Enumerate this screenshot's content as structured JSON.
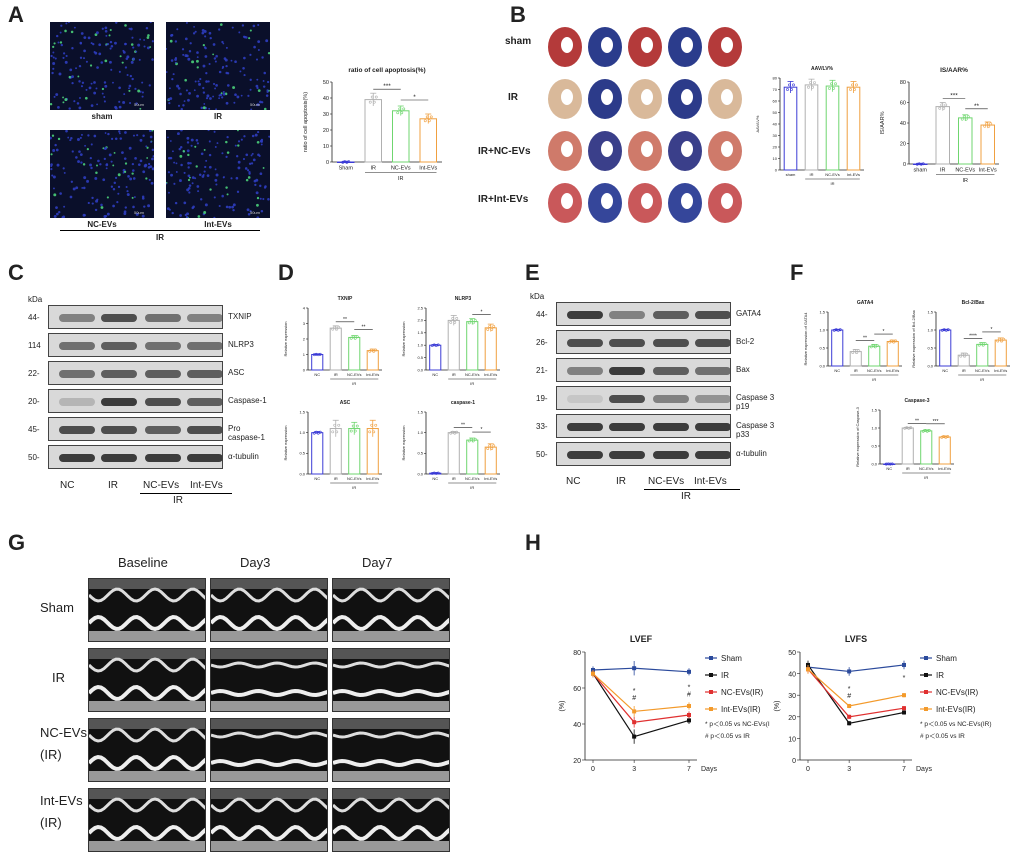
{
  "panels": {
    "A": "A",
    "B": "B",
    "C": "C",
    "D": "D",
    "E": "E",
    "F": "F",
    "G": "G",
    "H": "H"
  },
  "panelA": {
    "images": [
      "sham",
      "IR",
      "NC-EVs",
      "Int-EVs"
    ],
    "group_label": "IR",
    "scale_bar": "50um"
  },
  "panelB": {
    "rows": [
      "sham",
      "IR",
      "IR+NC-EVs",
      "IR+Int-EVs"
    ]
  },
  "panelC": {
    "kda_header": "kDa",
    "rows": [
      {
        "kda": "44-",
        "label": "TXNIP"
      },
      {
        "kda": "114",
        "label": "NLRP3"
      },
      {
        "kda": "22-",
        "label": "ASC"
      },
      {
        "kda": "20-",
        "label": "Caspase-1"
      },
      {
        "kda": "45-",
        "label": "Pro caspase-1"
      },
      {
        "kda": "50-",
        "label": "α-tubulin"
      }
    ],
    "lanes": [
      "NC",
      "IR",
      "NC-EVs",
      "Int-EVs"
    ],
    "group_label": "IR"
  },
  "panelE": {
    "kda_header": "kDa",
    "rows": [
      {
        "kda": "44-",
        "label": "GATA4"
      },
      {
        "kda": "26-",
        "label": "Bcl-2"
      },
      {
        "kda": "21-",
        "label": "Bax"
      },
      {
        "kda": "19-",
        "label": "Caspase 3 p19"
      },
      {
        "kda": "33-",
        "label": "Caspase 3 p33"
      },
      {
        "kda": "50-",
        "label": "α-tubulin"
      }
    ],
    "lanes": [
      "NC",
      "IR",
      "NC-EVs",
      "Int-EVs"
    ],
    "group_label": "IR"
  },
  "panelG": {
    "columns": [
      "Baseline",
      "Day3",
      "Day7"
    ],
    "rows": [
      "Sham",
      "IR",
      "NC-EVs\n(IR)",
      "Int-EVs\n(IR)"
    ]
  },
  "colors": {
    "sham": "#3b3bd6",
    "ir": "#b0b0b0",
    "nc": "#6fd66f",
    "int": "#f0a040",
    "h_sham": "#2b4a9c",
    "h_ir": "#111111",
    "h_nc": "#e03030",
    "h_int": "#f39a2b"
  },
  "chart_data": [
    {
      "id": "A-apoptosis",
      "type": "bar",
      "title": "ratio of cell apoptosis(%)",
      "ylabel": "ratio of cell apoptosis(%)",
      "categories": [
        "Sham",
        "IR",
        "NC-EVs",
        "Int-EVs"
      ],
      "group_label": "IR",
      "values": [
        0,
        39,
        32,
        27
      ],
      "errors": [
        0.5,
        4,
        3,
        3
      ],
      "ylim": [
        0,
        50
      ],
      "yticks": [
        "0",
        "10",
        "20",
        "30",
        "40",
        "50"
      ],
      "sig": [
        {
          "from": 1,
          "to": 2,
          "text": "***"
        },
        {
          "from": 2,
          "to": 3,
          "text": "*"
        }
      ]
    },
    {
      "id": "B-aav",
      "type": "bar",
      "title": "AAV/LV%",
      "ylabel": "AAV/LV%",
      "categories": [
        "sham",
        "IR",
        "NC-EVs",
        "Int-EVs"
      ],
      "group_label": "IR",
      "values": [
        72,
        74,
        73,
        72
      ],
      "errors": [
        5,
        5,
        5,
        5
      ],
      "ylim": [
        0,
        80
      ],
      "yticks": [
        "0",
        "10",
        "20",
        "30",
        "40",
        "50",
        "60",
        "70",
        "80"
      ],
      "sig": []
    },
    {
      "id": "B-isaar",
      "type": "bar",
      "title": "IS/AAR%",
      "ylabel": "IS/AAR%",
      "categories": [
        "sham",
        "IR",
        "NC-EVs",
        "Int-EVs"
      ],
      "group_label": "IR",
      "values": [
        0,
        56,
        45,
        38
      ],
      "errors": [
        0.5,
        4,
        3,
        3
      ],
      "ylim": [
        0,
        80
      ],
      "yticks": [
        "0",
        "20",
        "40",
        "60",
        "80"
      ],
      "sig": [
        {
          "from": 1,
          "to": 2,
          "text": "***"
        },
        {
          "from": 2,
          "to": 3,
          "text": "**"
        }
      ]
    },
    {
      "id": "D-txnip",
      "type": "bar",
      "title": "TXNIP",
      "ylabel": "Relative expression",
      "categories": [
        "NC",
        "IR",
        "NC-EVs",
        "Int-EVs"
      ],
      "group_label": "IR",
      "values": [
        1.0,
        2.7,
        2.1,
        1.25
      ],
      "errors": [
        0.03,
        0.15,
        0.12,
        0.1
      ],
      "ylim": [
        0,
        4
      ],
      "yticks": [
        "0",
        "1",
        "2",
        "3",
        "4"
      ],
      "sig": [
        {
          "from": 1,
          "to": 2,
          "text": "**"
        },
        {
          "from": 2,
          "to": 3,
          "text": "**"
        }
      ]
    },
    {
      "id": "D-nlrp3",
      "type": "bar",
      "title": "NLRP3",
      "ylabel": "Relative expression",
      "categories": [
        "NC",
        "IR",
        "NC-EVs",
        "Int-EVs"
      ],
      "group_label": "IR",
      "values": [
        1.0,
        2.0,
        1.95,
        1.7
      ],
      "errors": [
        0.03,
        0.2,
        0.12,
        0.15
      ],
      "ylim": [
        0,
        2.5
      ],
      "yticks": [
        "0.0",
        "0.5",
        "1.0",
        "1.5",
        "2.0",
        "2.5"
      ],
      "sig": [
        {
          "from": 2,
          "to": 3,
          "text": "*"
        }
      ]
    },
    {
      "id": "D-asc",
      "type": "bar",
      "title": "ASC",
      "ylabel": "Relative expression",
      "categories": [
        "NC",
        "IR",
        "NC-EVs",
        "Int-EVs"
      ],
      "group_label": "IR",
      "values": [
        1.0,
        1.1,
        1.1,
        1.1
      ],
      "errors": [
        0.03,
        0.2,
        0.15,
        0.2
      ],
      "ylim": [
        0,
        1.5
      ],
      "yticks": [
        "0.0",
        "0.5",
        "1.0",
        "1.5"
      ],
      "sig": []
    },
    {
      "id": "D-caspase1",
      "type": "bar",
      "title": "caspase-1",
      "ylabel": "Relative expression",
      "categories": [
        "NC",
        "IR",
        "NC-EVs",
        "Int-EVs"
      ],
      "group_label": "IR",
      "values": [
        0.02,
        1.0,
        0.82,
        0.65
      ],
      "errors": [
        0.01,
        0.03,
        0.05,
        0.08
      ],
      "ylim": [
        0,
        1.5
      ],
      "yticks": [
        "0.0",
        "0.5",
        "1.0",
        "1.5"
      ],
      "sig": [
        {
          "from": 1,
          "to": 2,
          "text": "**"
        },
        {
          "from": 2,
          "to": 3,
          "text": "*"
        }
      ]
    },
    {
      "id": "F-gata4",
      "type": "bar",
      "title": "GATA4",
      "ylabel": "Relative expression of GATA4",
      "categories": [
        "NC",
        "IR",
        "NC-EVs",
        "Int-EVs"
      ],
      "group_label": "IR",
      "values": [
        1.0,
        0.4,
        0.55,
        0.68
      ],
      "errors": [
        0.02,
        0.06,
        0.05,
        0.04
      ],
      "ylim": [
        0,
        1.5
      ],
      "yticks": [
        "0.0",
        "0.5",
        "1.0",
        "1.5"
      ],
      "sig": [
        {
          "from": 1,
          "to": 2,
          "text": "**"
        },
        {
          "from": 2,
          "to": 3,
          "text": "*"
        }
      ]
    },
    {
      "id": "F-bcl2bax",
      "type": "bar",
      "title": "Bcl-2/Bax",
      "ylabel": "Relative expression of Bcl-2/Bax",
      "categories": [
        "NC",
        "IR",
        "NC-EVs",
        "Int-EVs"
      ],
      "group_label": "IR",
      "values": [
        1.0,
        0.3,
        0.6,
        0.72
      ],
      "errors": [
        0.02,
        0.06,
        0.05,
        0.06
      ],
      "ylim": [
        0,
        1.5
      ],
      "yticks": [
        "0.0",
        "0.5",
        "1.0",
        "1.5"
      ],
      "sig": [
        {
          "from": 1,
          "to": 2,
          "text": "****"
        },
        {
          "from": 2,
          "to": 3,
          "text": "*"
        }
      ]
    },
    {
      "id": "F-caspase3",
      "type": "bar",
      "title": "Caspase-3",
      "ylabel": "Relative expression of Caspase-3",
      "categories": [
        "NC",
        "IR",
        "NC-EVs",
        "Int-EVs"
      ],
      "group_label": "IR",
      "values": [
        0.0,
        1.0,
        0.92,
        0.75
      ],
      "errors": [
        0.005,
        0.02,
        0.03,
        0.03
      ],
      "ylim": [
        0,
        1.5
      ],
      "yticks": [
        "0.0",
        "0.5",
        "1.0",
        "1.5"
      ],
      "sig": [
        {
          "from": 1,
          "to": 2,
          "text": "**"
        },
        {
          "from": 2,
          "to": 3,
          "text": "***"
        }
      ]
    },
    {
      "id": "H-lvef",
      "type": "line",
      "title": "LVEF",
      "xlabel": "Days",
      "ylabel": "(%)",
      "x": [
        0,
        3,
        7
      ],
      "ylim": [
        20,
        80
      ],
      "yticks": [
        "20",
        "40",
        "60",
        "80"
      ],
      "series": [
        {
          "name": "Sham",
          "values": [
            70,
            71,
            69
          ],
          "errors": [
            2,
            4,
            2
          ]
        },
        {
          "name": "IR",
          "values": [
            68,
            33,
            42
          ],
          "errors": [
            2,
            4,
            2
          ]
        },
        {
          "name": "NC-EVs(IR)",
          "values": [
            68,
            41,
            45
          ],
          "errors": [
            2,
            3,
            2
          ]
        },
        {
          "name": "Int-EVs(IR)",
          "values": [
            68,
            47,
            50
          ],
          "errors": [
            2,
            3,
            2
          ]
        }
      ],
      "annotations": [
        "* p＜0.05 vs NC-EVs(IR)",
        "# p＜0.05 vs IR"
      ],
      "marks": [
        {
          "x": 3,
          "text": "*"
        },
        {
          "x": 3,
          "text": "#"
        },
        {
          "x": 7,
          "text": "*"
        },
        {
          "x": 7,
          "text": "#"
        }
      ]
    },
    {
      "id": "H-lvfs",
      "type": "line",
      "title": "LVFS",
      "xlabel": "Days",
      "ylabel": "(%)",
      "x": [
        0,
        3,
        7
      ],
      "ylim": [
        0,
        50
      ],
      "yticks": [
        "0",
        "10",
        "20",
        "30",
        "40",
        "50"
      ],
      "series": [
        {
          "name": "Sham",
          "values": [
            43,
            41,
            44
          ],
          "errors": [
            2,
            2,
            2
          ]
        },
        {
          "name": "IR",
          "values": [
            44,
            17,
            22
          ],
          "errors": [
            2,
            1,
            1
          ]
        },
        {
          "name": "NC-EVs(IR)",
          "values": [
            42,
            20,
            24
          ],
          "errors": [
            2,
            1,
            1
          ]
        },
        {
          "name": "Int-EVs(IR)",
          "values": [
            42,
            25,
            30
          ],
          "errors": [
            2,
            1,
            1
          ]
        }
      ],
      "annotations": [
        "* p＜0.05 vs NC-EVs(IR)",
        "# p＜0.05 vs IR"
      ],
      "marks": [
        {
          "x": 3,
          "text": "*"
        },
        {
          "x": 3,
          "text": "#"
        },
        {
          "x": 7,
          "text": "*"
        }
      ]
    }
  ]
}
